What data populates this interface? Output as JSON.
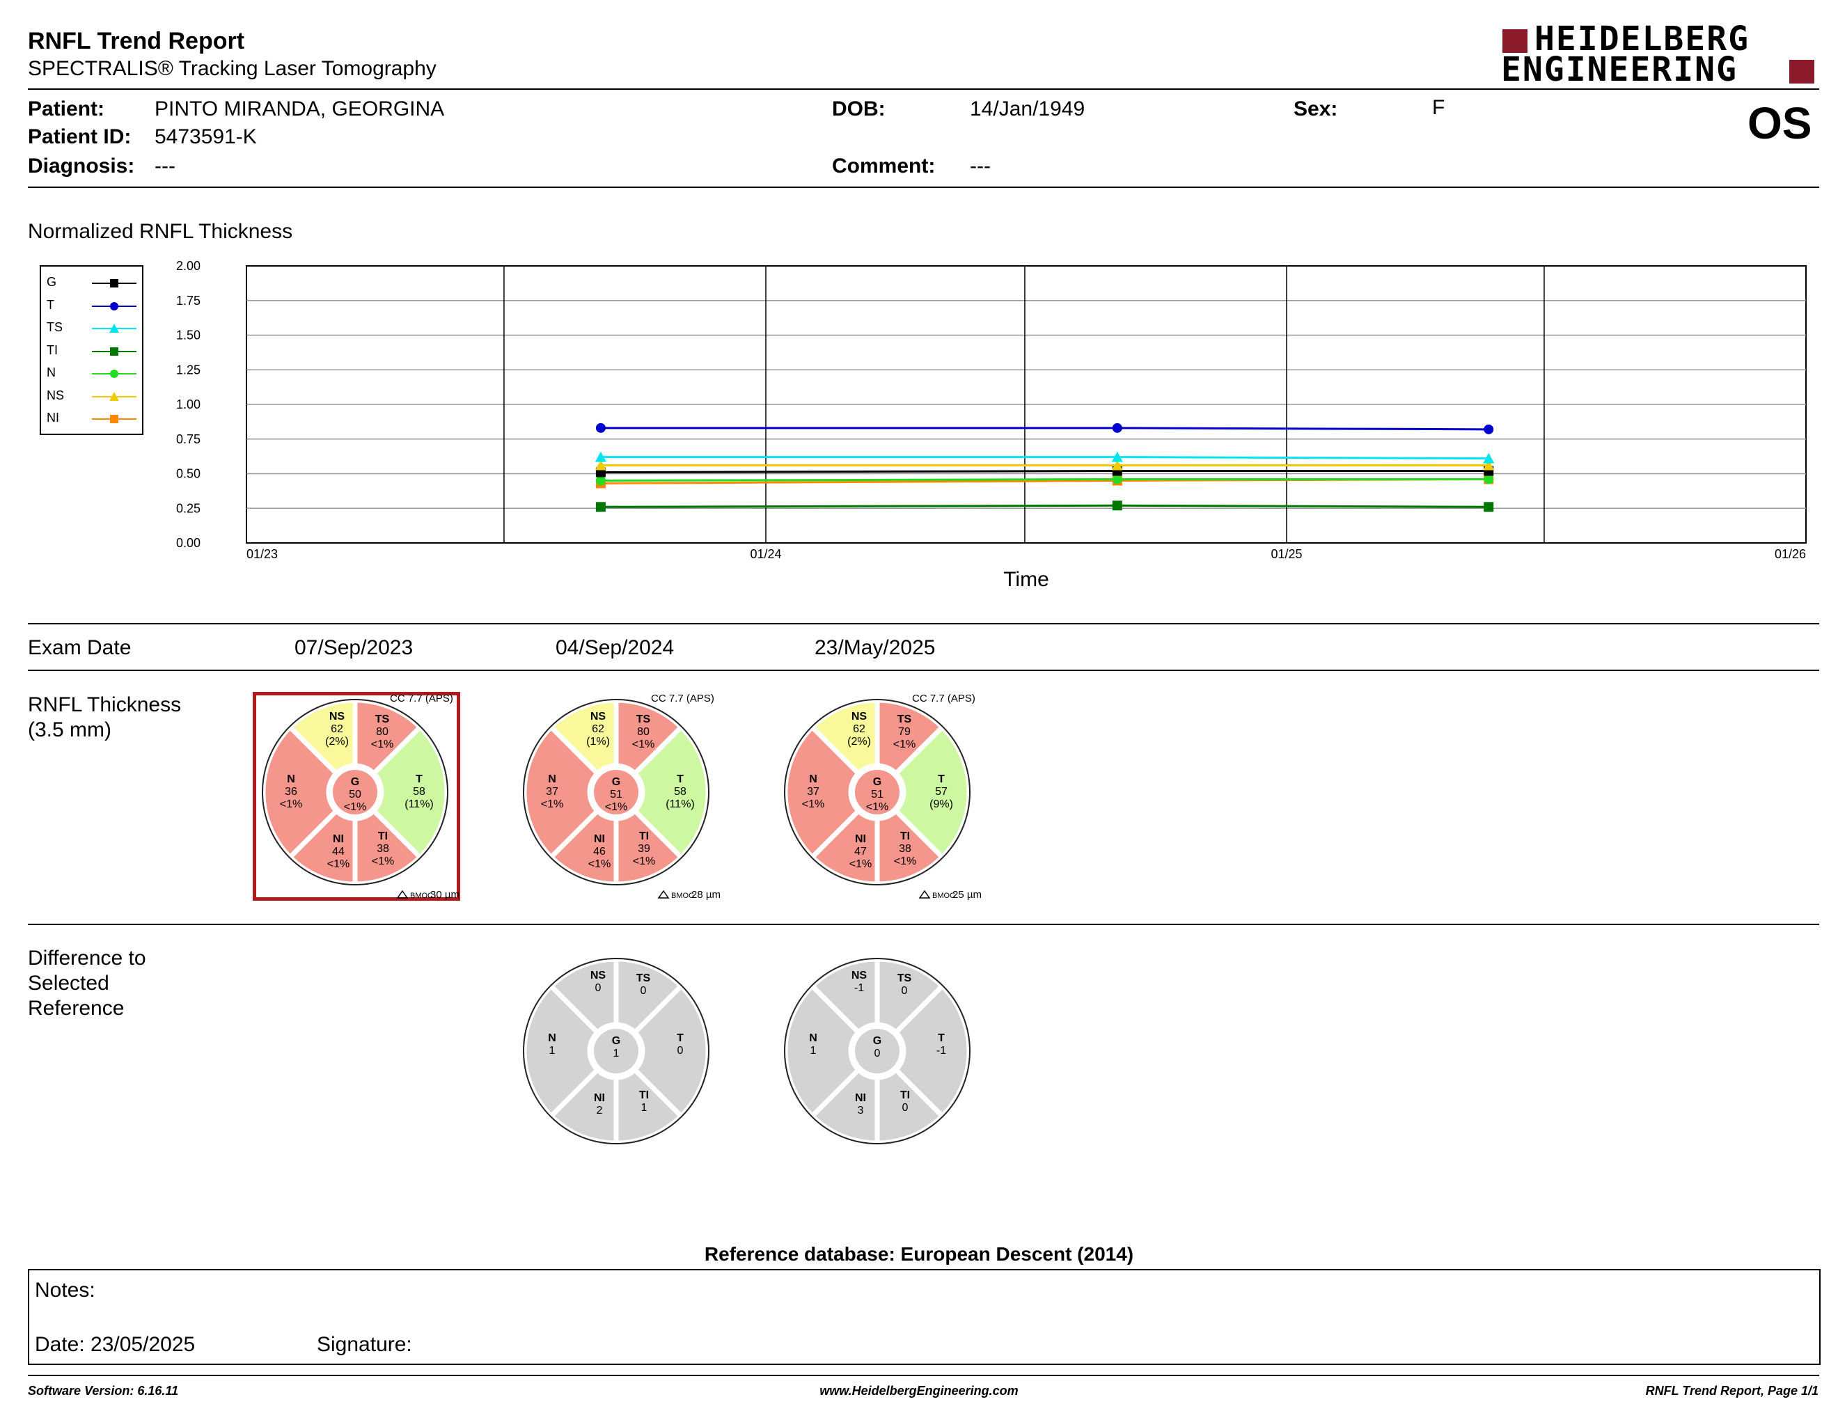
{
  "header": {
    "title": "RNFL Trend Report",
    "subtitle": "SPECTRALIS® Tracking Laser Tomography",
    "logo_line1": "HEIDELBERG",
    "logo_line2": "ENGINEERING",
    "eye": "OS"
  },
  "patient": {
    "patient_label": "Patient:",
    "patient_value": "PINTO MIRANDA, GEORGINA",
    "id_label": "Patient ID:",
    "id_value": "5473591-K",
    "diagnosis_label": "Diagnosis:",
    "diagnosis_value": "---",
    "dob_label": "DOB:",
    "dob_value": "14/Jan/1949",
    "comment_label": "Comment:",
    "comment_value": "---",
    "sex_label": "Sex:",
    "sex_value": "F"
  },
  "chart_data": {
    "type": "line",
    "title": "Normalized RNFL Thickness",
    "xlabel": "Time",
    "ylabel": "",
    "ylim": [
      0,
      2
    ],
    "yticks": [
      "0.00",
      "0.25",
      "0.50",
      "0.75",
      "1.00",
      "1.25",
      "1.50",
      "1.75",
      "2.00"
    ],
    "x_range": [
      "2023-01-01",
      "2026-01-01"
    ],
    "xtick_labels": [
      "01/23",
      "01/24",
      "01/25",
      "01/26"
    ],
    "x": [
      "2023-09-07",
      "2024-09-04",
      "2025-05-23"
    ],
    "legend_placement": "left",
    "grid": true,
    "series": [
      {
        "name": "G",
        "color": "#000000",
        "marker": "square",
        "values": [
          0.51,
          0.52,
          0.52
        ]
      },
      {
        "name": "T",
        "color": "#0000cc",
        "marker": "circle",
        "values": [
          0.83,
          0.83,
          0.82
        ]
      },
      {
        "name": "TS",
        "color": "#00e5ee",
        "marker": "triangle",
        "values": [
          0.62,
          0.62,
          0.61
        ]
      },
      {
        "name": "TI",
        "color": "#007700",
        "marker": "square",
        "values": [
          0.26,
          0.27,
          0.26
        ]
      },
      {
        "name": "N",
        "color": "#22dd22",
        "marker": "circle",
        "values": [
          0.45,
          0.46,
          0.46
        ]
      },
      {
        "name": "NS",
        "color": "#eecc00",
        "marker": "triangle",
        "values": [
          0.56,
          0.56,
          0.56
        ]
      },
      {
        "name": "NI",
        "color": "#ff8800",
        "marker": "square",
        "values": [
          0.43,
          0.45,
          0.46
        ]
      }
    ]
  },
  "exam": {
    "label": "Exam Date",
    "dates": [
      "07/Sep/2023",
      "04/Sep/2024",
      "23/May/2025"
    ]
  },
  "rnfl": {
    "label_line1": "RNFL Thickness",
    "label_line2": "(3.5 mm)",
    "colors": {
      "red": "#f4968c",
      "yellow": "#f9f99b",
      "green": "#cdf7a0",
      "gray": "#d3d3d3"
    },
    "exams": [
      {
        "selected": true,
        "cc": "CC 7.7 (APS)",
        "bmoc": "30 µm",
        "sectors": {
          "NS": {
            "value": "62",
            "pct": "(2%)",
            "color": "yellow"
          },
          "TS": {
            "value": "80",
            "pct": "<1%",
            "color": "red"
          },
          "T": {
            "value": "58",
            "pct": "(11%)",
            "color": "green"
          },
          "TI": {
            "value": "38",
            "pct": "<1%",
            "color": "red"
          },
          "NI": {
            "value": "44",
            "pct": "<1%",
            "color": "red"
          },
          "N": {
            "value": "36",
            "pct": "<1%",
            "color": "red"
          },
          "G": {
            "value": "50",
            "pct": "<1%",
            "color": "red"
          }
        }
      },
      {
        "selected": false,
        "cc": "CC 7.7 (APS)",
        "bmoc": "28 µm",
        "sectors": {
          "NS": {
            "value": "62",
            "pct": "(1%)",
            "color": "yellow"
          },
          "TS": {
            "value": "80",
            "pct": "<1%",
            "color": "red"
          },
          "T": {
            "value": "58",
            "pct": "(11%)",
            "color": "green"
          },
          "TI": {
            "value": "39",
            "pct": "<1%",
            "color": "red"
          },
          "NI": {
            "value": "46",
            "pct": "<1%",
            "color": "red"
          },
          "N": {
            "value": "37",
            "pct": "<1%",
            "color": "red"
          },
          "G": {
            "value": "51",
            "pct": "<1%",
            "color": "red"
          }
        }
      },
      {
        "selected": false,
        "cc": "CC 7.7 (APS)",
        "bmoc": "25 µm",
        "sectors": {
          "NS": {
            "value": "62",
            "pct": "(2%)",
            "color": "yellow"
          },
          "TS": {
            "value": "79",
            "pct": "<1%",
            "color": "red"
          },
          "T": {
            "value": "57",
            "pct": "(9%)",
            "color": "green"
          },
          "TI": {
            "value": "38",
            "pct": "<1%",
            "color": "red"
          },
          "NI": {
            "value": "47",
            "pct": "<1%",
            "color": "red"
          },
          "N": {
            "value": "37",
            "pct": "<1%",
            "color": "red"
          },
          "G": {
            "value": "51",
            "pct": "<1%",
            "color": "red"
          }
        }
      }
    ]
  },
  "difference": {
    "label_line1": "Difference to",
    "label_line2": "Selected",
    "label_line3": "Reference",
    "exams": [
      {
        "sectors": {
          "NS": "0",
          "TS": "0",
          "T": "0",
          "TI": "1",
          "NI": "2",
          "N": "1",
          "G": "1"
        }
      },
      {
        "sectors": {
          "NS": "-1",
          "TS": "0",
          "T": "-1",
          "TI": "0",
          "NI": "3",
          "N": "1",
          "G": "0"
        }
      }
    ]
  },
  "reference_db": "Reference database: European Descent (2014)",
  "notes": {
    "notes_label": "Notes:",
    "date_label": "Date: 23/05/2025",
    "signature_label": "Signature:"
  },
  "footer": {
    "software": "Software Version: 6.16.11",
    "website": "www.HeidelbergEngineering.com",
    "page": "RNFL Trend Report, Page 1/1"
  },
  "bmoc_prefix": "BMOC"
}
